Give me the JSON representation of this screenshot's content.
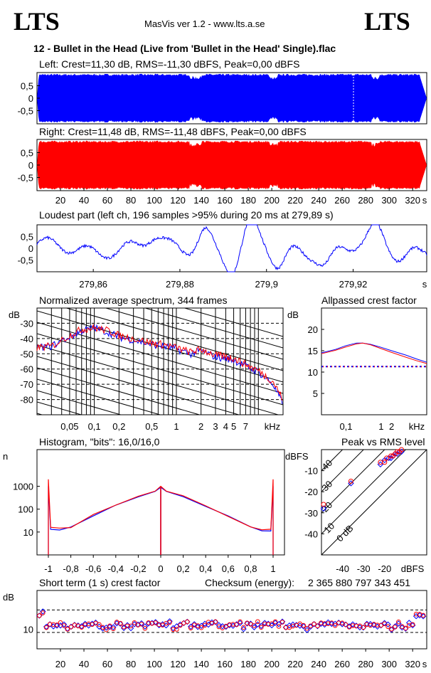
{
  "header": {
    "logo_left": "LTS",
    "logo_right": "LTS",
    "app_title": "MasVis ver 1.2 - www.lts.a.se",
    "file_title": "12 - Bullet in the Head (Live from 'Bullet in the Head' Single).flac"
  },
  "colors": {
    "left": "#0000ff",
    "right": "#ff0000",
    "grid_dashed": "#000000"
  },
  "chart_data": [
    {
      "id": "left_waveform",
      "type": "area",
      "title": "Left: Crest=11,30 dB, RMS=-11,30 dBFS, Peak=0,00 dBFS",
      "y_ticks": [
        "0,5",
        "0",
        "-0,5"
      ],
      "ylim": [
        -1,
        1
      ],
      "xlim": [
        0,
        332
      ],
      "series": [
        {
          "color": "#0000ff"
        }
      ]
    },
    {
      "id": "right_waveform",
      "type": "area",
      "title": "Right: Crest=11,48 dB, RMS=-11,48 dBFS, Peak=0,00 dBFS",
      "y_ticks": [
        "0,5",
        "0",
        "-0,5"
      ],
      "ylim": [
        -1,
        1
      ],
      "xlim": [
        0,
        332
      ],
      "x_ticks": [
        "20",
        "40",
        "60",
        "80",
        "100",
        "120",
        "140",
        "160",
        "180",
        "200",
        "220",
        "240",
        "260",
        "280",
        "300",
        "320",
        "s"
      ],
      "series": [
        {
          "color": "#ff0000"
        }
      ]
    },
    {
      "id": "loudest_part",
      "type": "line",
      "title": "Loudest part (left  ch, 196 samples >95% during 20 ms at 279,89 s)",
      "y_ticks": [
        "0,5",
        "0",
        "-0,5"
      ],
      "ylim": [
        -1,
        1
      ],
      "xlim": [
        279.847,
        279.937
      ],
      "x_ticks": [
        "279,86",
        "279,88",
        "279,9",
        "279,92",
        "s"
      ]
    },
    {
      "id": "avg_spectrum",
      "type": "line",
      "title": "Normalized average spectrum, 344 frames",
      "ylabel": "dB",
      "xlabel": "kHz",
      "ylim": [
        -90,
        -20
      ],
      "y_ticks": [
        "-30",
        "-40",
        "-50",
        "-60",
        "-70",
        "-80"
      ],
      "x_ticks": [
        "0,05",
        "0,1",
        "0,2",
        "0,5",
        "1",
        "2",
        "3",
        "4",
        "5",
        "7",
        "kHz"
      ],
      "x": [
        0.02,
        0.03,
        0.05,
        0.07,
        0.1,
        0.15,
        0.2,
        0.3,
        0.5,
        0.7,
        1,
        1.5,
        2,
        3,
        4,
        5,
        7,
        10,
        15,
        20
      ],
      "series": [
        {
          "color": "#0000ff",
          "values": [
            -46,
            -45,
            -39,
            -35,
            -33,
            -36,
            -39,
            -41,
            -44,
            -45,
            -47,
            -50,
            -48,
            -52,
            -53,
            -54,
            -58,
            -62,
            -70,
            -83
          ]
        },
        {
          "color": "#ff0000",
          "values": [
            -46,
            -45,
            -38,
            -34,
            -33,
            -35,
            -38,
            -40,
            -43,
            -44,
            -46,
            -49,
            -47,
            -51,
            -52,
            -53,
            -57,
            -61,
            -68,
            -80
          ]
        }
      ]
    },
    {
      "id": "allpassed_crest",
      "type": "line",
      "title": "Allpassed crest factor",
      "ylabel": "dB",
      "xlabel": "kHz",
      "ylim": [
        0,
        25
      ],
      "y_ticks": [
        "20",
        "15",
        "10",
        "5"
      ],
      "x_ticks": [
        "0,1",
        "1",
        "2",
        "kHz"
      ],
      "x": [
        0.02,
        0.05,
        0.1,
        0.2,
        0.3,
        0.5,
        1,
        2,
        5,
        10,
        20
      ],
      "reference_level": 11.3,
      "series": [
        {
          "color": "#0000ff",
          "values": [
            14.5,
            15.3,
            16.2,
            16.8,
            16.8,
            16.5,
            15.8,
            15.0,
            14.0,
            13.1,
            12.3
          ]
        },
        {
          "color": "#ff0000",
          "values": [
            14.3,
            15.1,
            15.9,
            16.6,
            16.8,
            16.4,
            15.5,
            14.6,
            13.5,
            12.7,
            12.0
          ]
        }
      ]
    },
    {
      "id": "histogram",
      "type": "line",
      "title": "Histogram, \"bits\": 16,0/16,0",
      "ylabel": "n",
      "ylim": [
        1,
        40000
      ],
      "y_ticks": [
        "1000",
        "100",
        "10"
      ],
      "x_ticks": [
        "-1",
        "-0,8",
        "-0,6",
        "-0,4",
        "-0,2",
        "0",
        "0,2",
        "0,4",
        "0,6",
        "0,8",
        "1"
      ],
      "x": [
        -1,
        -0.98,
        -0.9,
        -0.8,
        -0.6,
        -0.4,
        -0.2,
        -0.05,
        0,
        0.05,
        0.2,
        0.4,
        0.6,
        0.8,
        0.9,
        0.98,
        1
      ],
      "series": [
        {
          "color": "#0000ff",
          "values": [
            1000,
            12,
            12,
            16,
            50,
            150,
            350,
            600,
            900,
            600,
            350,
            150,
            50,
            16,
            12,
            12,
            1000
          ]
        },
        {
          "color": "#ff0000",
          "values": [
            2000,
            15,
            14,
            17,
            52,
            155,
            360,
            610,
            1000,
            610,
            360,
            155,
            52,
            17,
            14,
            15,
            2000
          ]
        }
      ]
    },
    {
      "id": "peak_vs_rms",
      "type": "scatter",
      "title": "Peak vs RMS level",
      "ylabel": "dBFS",
      "xlabel": "dBFS",
      "xlim": [
        -50,
        0
      ],
      "ylim": [
        -50,
        0
      ],
      "y_ticks": [
        "-10",
        "-20",
        "-30",
        "-40"
      ],
      "x_ticks": [
        "-40",
        "-30",
        "-20",
        "dBFS"
      ],
      "diagonal_labels": [
        "40",
        "30",
        "20",
        "10",
        "0 dB"
      ],
      "series": [
        {
          "color": "#0000ff",
          "x": [
            -49,
            -36,
            -22,
            -20,
            -18,
            -17,
            -16,
            -15,
            -14,
            -13,
            -12
          ],
          "y": [
            -28,
            -16,
            -7,
            -5,
            -4,
            -4,
            -3,
            -2,
            -2,
            -1,
            -1
          ]
        },
        {
          "color": "#ff0000",
          "x": [
            -49,
            -36,
            -22,
            -20,
            -19,
            -17,
            -16,
            -15,
            -14,
            -13,
            -12
          ],
          "y": [
            -26,
            -15,
            -6,
            -6,
            -4,
            -3,
            -3,
            -2,
            -1,
            -1,
            0
          ]
        }
      ]
    },
    {
      "id": "short_term_crest",
      "type": "scatter",
      "title": "Short term (1 s) crest factor",
      "ylabel": "dB",
      "y_ticks": [
        "10"
      ],
      "ylim": [
        5,
        20
      ],
      "xlim": [
        0,
        332
      ],
      "x_ticks": [
        "20",
        "40",
        "60",
        "80",
        "100",
        "120",
        "140",
        "160",
        "180",
        "200",
        "220",
        "240",
        "260",
        "280",
        "300",
        "320",
        "s"
      ]
    }
  ],
  "checksum": {
    "label": "Checksum (energy):",
    "value": "2 365 880 797 343 451"
  }
}
